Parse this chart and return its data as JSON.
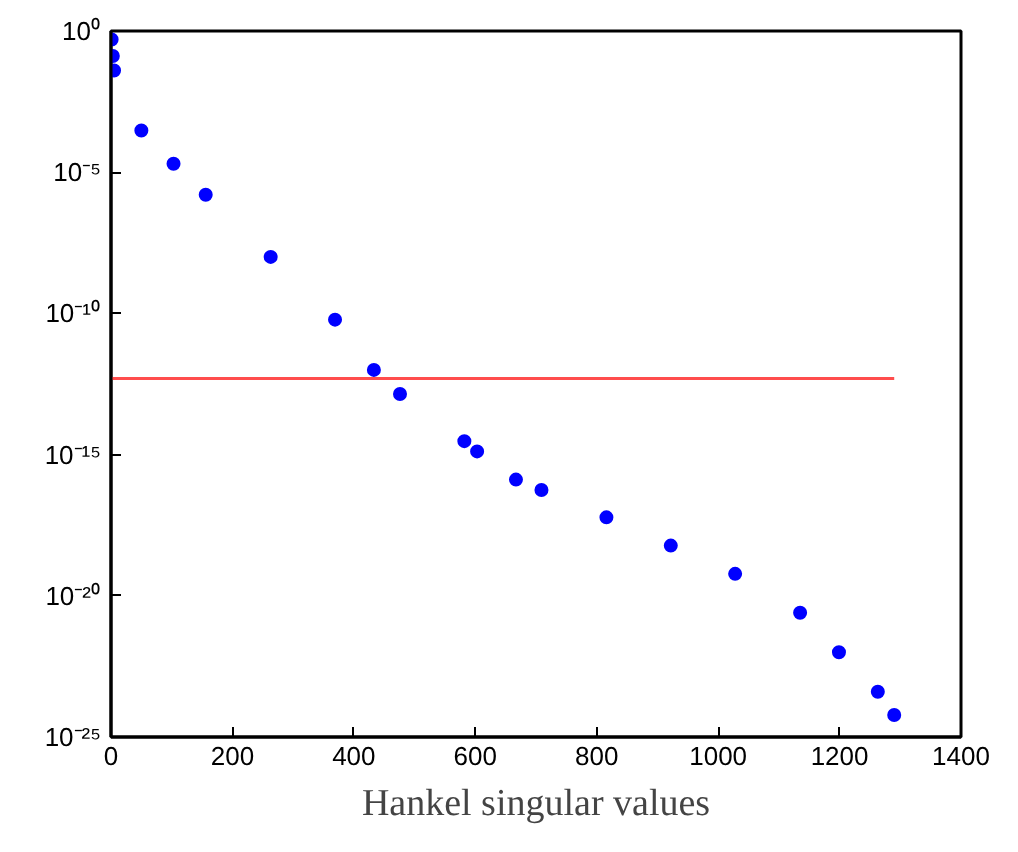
{
  "chart_data": {
    "type": "scatter",
    "xlabel": "Hankel singular values",
    "log": "y",
    "grid": false,
    "xlim": [
      0,
      1400
    ],
    "xticks": [
      0,
      200,
      400,
      600,
      800,
      1000,
      1200,
      1400
    ],
    "ylim": [
      1e-25,
      1
    ],
    "yticks": [
      {
        "value": 1,
        "label": "10⁰"
      },
      {
        "value": 1e-05,
        "label": "10⁻⁵"
      },
      {
        "value": 1e-10,
        "label": "10⁻¹⁰"
      },
      {
        "value": 1e-15,
        "label": "10⁻¹⁵"
      },
      {
        "value": 1e-20,
        "label": "10⁻²⁰"
      },
      {
        "value": 1e-25,
        "label": "10⁻²⁵"
      }
    ],
    "series": [
      {
        "marker": "circle",
        "color": "#0000ff",
        "x": [
          1,
          3,
          5,
          50,
          103,
          156,
          263,
          369,
          433,
          476,
          582,
          603,
          667,
          709,
          816,
          922,
          1028,
          1135,
          1199,
          1263,
          1290
        ],
        "values": [
          0.5,
          0.13,
          0.04,
          0.0003,
          2e-05,
          1.6e-06,
          1e-08,
          6e-11,
          1e-12,
          1.4e-13,
          3e-15,
          1.3e-15,
          1.3e-16,
          5.6e-17,
          6e-18,
          6e-19,
          6e-20,
          2.5e-21,
          1e-22,
          4e-24,
          6e-25
        ]
      },
      {
        "type": "line",
        "marker": "none",
        "color": "#ff4d4d",
        "x": [
          0,
          1290
        ],
        "values": [
          5e-13,
          5e-13
        ]
      }
    ]
  }
}
